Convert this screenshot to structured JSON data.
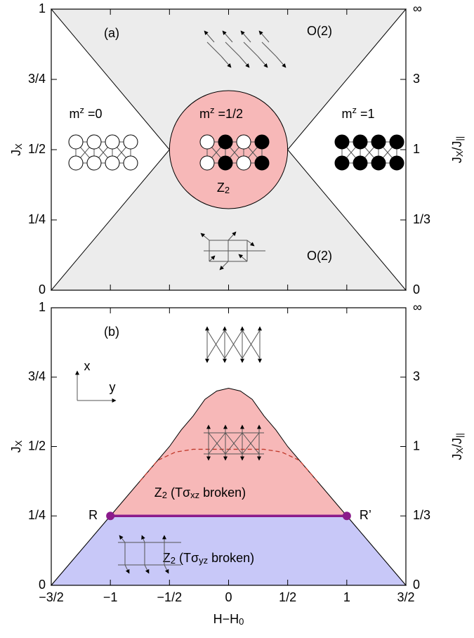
{
  "chart_data": [
    {
      "type": "phase",
      "label": "(a)",
      "xlim": [
        -1.5,
        1.5
      ],
      "ylim": [
        0,
        1
      ],
      "ylabel": {
        "parts": [
          {
            "text": "J"
          },
          {
            "text": "X",
            "sub": true
          }
        ]
      },
      "y2label": {
        "parts": [
          {
            "text": "J"
          },
          {
            "text": "X",
            "sub": true
          },
          {
            "text": "/J"
          },
          {
            "text": "||",
            "sub": true
          }
        ]
      },
      "yticks": [
        0,
        {
          "value": 0.25,
          "label": "1/4"
        },
        {
          "value": 0.5,
          "label": "1/2"
        },
        {
          "value": 0.75,
          "label": "3/4"
        },
        1
      ],
      "y2ticks": [
        0,
        {
          "value": 0.3333,
          "label": "1/3"
        },
        1,
        3,
        {
          "value": null,
          "label": "∞"
        }
      ],
      "regions": [
        {
          "color": "#ececec",
          "x": [
            -1.5,
            1.5,
            0.5,
            1.5,
            -1.5,
            -0.5
          ],
          "y": [
            1,
            1,
            0.5,
            0,
            0,
            0.5
          ]
        }
      ],
      "ellipse": {
        "color": "#f7b8b8",
        "center": [
          0,
          0.5
        ],
        "rx": 0.5,
        "ry": 0.21
      },
      "annotations": [
        {
          "parts": [
            {
              "text": "m"
            },
            {
              "text": "z",
              "sup": true
            },
            {
              "text": " =0"
            }
          ]
        },
        {
          "parts": [
            {
              "text": "m"
            },
            {
              "text": "z",
              "sup": true
            },
            {
              "text": " =1/2"
            }
          ]
        },
        {
          "parts": [
            {
              "text": "m"
            },
            {
              "text": "z",
              "sup": true
            },
            {
              "text": " =1"
            }
          ]
        },
        {
          "parts": [
            {
              "text": "Z"
            },
            {
              "text": "2",
              "sub": true
            }
          ]
        },
        {
          "parts": [
            {
              "text": "O(2)"
            }
          ]
        },
        {
          "parts": [
            {
              "text": "O(2)"
            }
          ]
        }
      ]
    },
    {
      "type": "phase",
      "label": "(b)",
      "xlim": [
        -1.5,
        1.5
      ],
      "ylim": [
        0,
        1
      ],
      "xlabel": {
        "parts": [
          {
            "text": "H−H"
          },
          {
            "text": "0",
            "sub": true
          }
        ]
      },
      "ylabel": {
        "parts": [
          {
            "text": "J"
          },
          {
            "text": "X",
            "sub": true
          }
        ]
      },
      "y2label": {
        "parts": [
          {
            "text": "J"
          },
          {
            "text": "X",
            "sub": true
          },
          {
            "text": "/J"
          },
          {
            "text": "||",
            "sub": true
          }
        ]
      },
      "xticks": [
        {
          "value": -1.5,
          "label": "−3/2"
        },
        {
          "value": -1,
          "label": "−1"
        },
        {
          "value": -0.5,
          "label": "−1/2"
        },
        0,
        {
          "value": 0.5,
          "label": "1/2"
        },
        1,
        {
          "value": 1.5,
          "label": "3/2"
        }
      ],
      "yticks": [
        0,
        {
          "value": 0.25,
          "label": "1/4"
        },
        {
          "value": 0.5,
          "label": "1/2"
        },
        {
          "value": 0.75,
          "label": "3/4"
        },
        1
      ],
      "y2ticks": [
        0,
        {
          "value": 0.3333,
          "label": "1/3"
        },
        1,
        3,
        {
          "value": null,
          "label": "∞"
        }
      ],
      "regions": [
        {
          "color": "#f7b8b8",
          "x": [
            -1.5,
            -1,
            -0.5,
            -0.4,
            -0.3,
            -0.2,
            -0.1,
            0,
            0.1,
            0.2,
            0.3,
            0.4,
            0.5,
            1,
            1.5
          ],
          "y": [
            0,
            0.25,
            0.5,
            0.56,
            0.61,
            0.67,
            0.7,
            0.71,
            0.7,
            0.67,
            0.61,
            0.56,
            0.5,
            0.25,
            0
          ]
        },
        {
          "color": "#c8c8f8",
          "x": [
            -1.5,
            -1,
            1,
            1.5
          ],
          "y": [
            0,
            0.25,
            0.25,
            0
          ]
        }
      ],
      "dashed": {
        "color": "#c0392b",
        "x": [
          -0.75,
          -0.6,
          -0.45,
          -0.3,
          0,
          0.3,
          0.45,
          0.6,
          0.75
        ],
        "y": [
          0.375,
          0.45,
          0.48,
          0.49,
          0.49,
          0.49,
          0.48,
          0.45,
          0.375
        ]
      },
      "segment": {
        "color": "#8b1a8b",
        "x": [
          -1,
          1
        ],
        "y": [
          0.25,
          0.25
        ],
        "labels": [
          "R",
          "R’"
        ]
      },
      "annotations": [
        {
          "parts": [
            {
              "text": "Z"
            },
            {
              "text": "2",
              "sub": true
            },
            {
              "text": " (Tσ"
            },
            {
              "text": "xz",
              "sub": true
            },
            {
              "text": " broken)"
            }
          ]
        },
        {
          "parts": [
            {
              "text": "Z"
            },
            {
              "text": "2",
              "sub": true
            },
            {
              "text": " (Tσ"
            },
            {
              "text": "yz",
              "sub": true
            },
            {
              "text": " broken)"
            }
          ]
        },
        {
          "parts": [
            {
              "text": "x"
            }
          ]
        },
        {
          "parts": [
            {
              "text": "y"
            }
          ]
        }
      ]
    }
  ]
}
